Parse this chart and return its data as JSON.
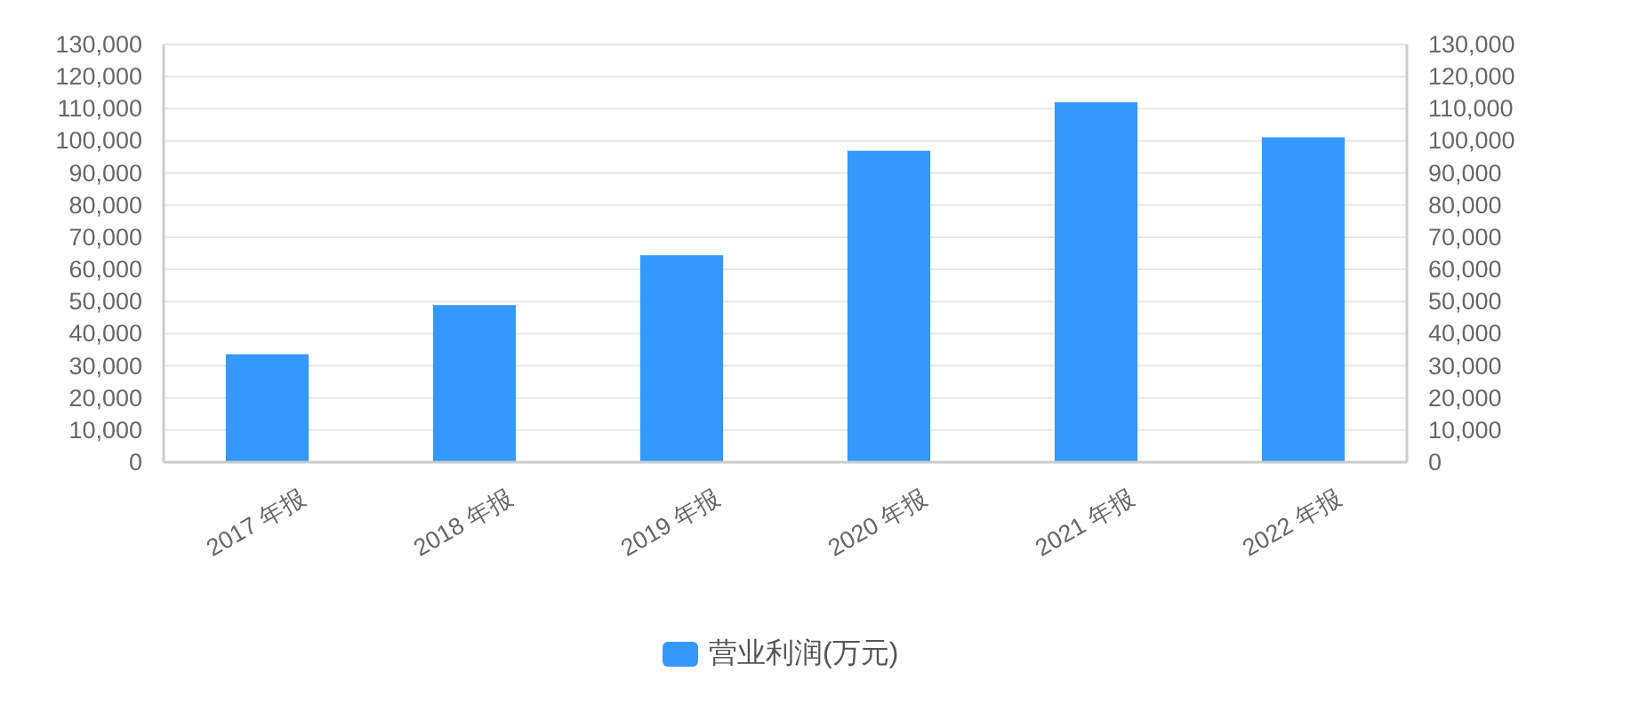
{
  "chart_data": {
    "type": "bar",
    "categories": [
      "2017 年报",
      "2018 年报",
      "2019 年报",
      "2020 年报",
      "2021 年报",
      "2022 年报"
    ],
    "series": [
      {
        "name": "营业利润(万元)",
        "color": "#3399ff",
        "values": [
          33600,
          48900,
          64400,
          96900,
          112000,
          101100
        ]
      }
    ],
    "ylim": [
      0,
      130000
    ],
    "yticks": [
      {
        "value": 0,
        "label": "0"
      },
      {
        "value": 10000,
        "label": "10,000"
      },
      {
        "value": 20000,
        "label": "20,000"
      },
      {
        "value": 30000,
        "label": "30,000"
      },
      {
        "value": 40000,
        "label": "40,000"
      },
      {
        "value": 50000,
        "label": "50,000"
      },
      {
        "value": 60000,
        "label": "60,000"
      },
      {
        "value": 70000,
        "label": "70,000"
      },
      {
        "value": 80000,
        "label": "80,000"
      },
      {
        "value": 90000,
        "label": "90,000"
      },
      {
        "value": 100000,
        "label": "100,000"
      },
      {
        "value": 110000,
        "label": "110,000"
      },
      {
        "value": 120000,
        "label": "120,000"
      },
      {
        "value": 130000,
        "label": "130,000"
      }
    ],
    "y2lim": [
      0,
      130000
    ],
    "y2ticks": [
      {
        "value": 0,
        "label": "0"
      },
      {
        "value": 10000,
        "label": "10,000"
      },
      {
        "value": 20000,
        "label": "20,000"
      },
      {
        "value": 30000,
        "label": "30,000"
      },
      {
        "value": 40000,
        "label": "40,000"
      },
      {
        "value": 50000,
        "label": "50,000"
      },
      {
        "value": 60000,
        "label": "60,000"
      },
      {
        "value": 70000,
        "label": "70,000"
      },
      {
        "value": 80000,
        "label": "80,000"
      },
      {
        "value": 90000,
        "label": "90,000"
      },
      {
        "value": 100000,
        "label": "100,000"
      },
      {
        "value": 110000,
        "label": "110,000"
      },
      {
        "value": 120000,
        "label": "120,000"
      },
      {
        "value": 130000,
        "label": "130,000"
      }
    ],
    "grid": "y",
    "legend": "bottom"
  }
}
